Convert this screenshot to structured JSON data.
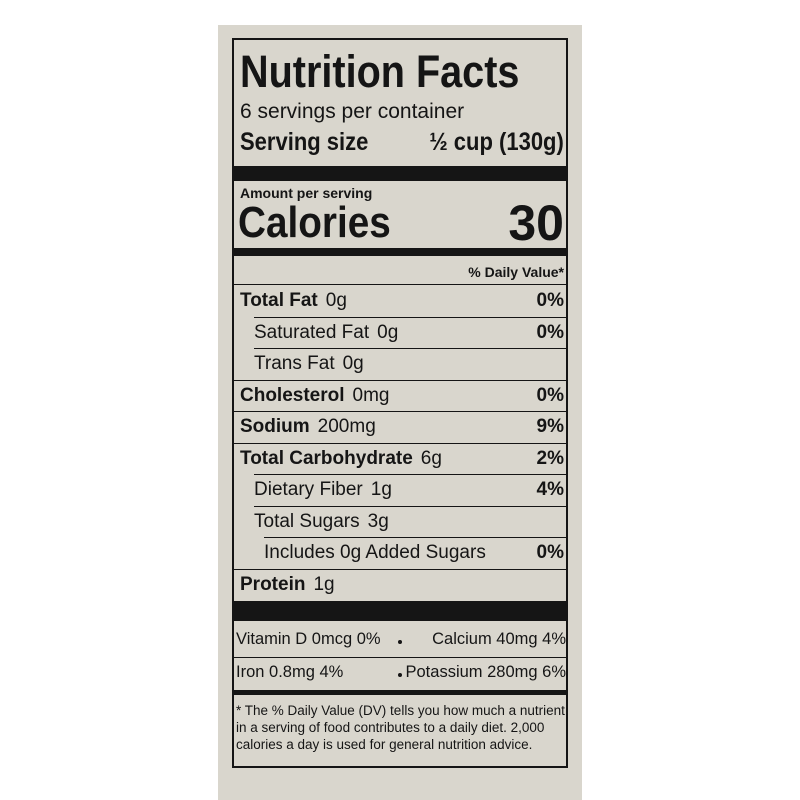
{
  "title": "Nutrition Facts",
  "servings": "6 servings per container",
  "serving_size": {
    "label": "Serving size",
    "value": "½ cup (130g)"
  },
  "amount_per_serving": "Amount per serving",
  "calories": {
    "label": "Calories",
    "value": "30"
  },
  "dv_header": "% Daily Value*",
  "nutrients": [
    {
      "name": "Total Fat",
      "amount": "0g",
      "dv": "0%",
      "level": 0
    },
    {
      "name": "Saturated Fat",
      "amount": "0g",
      "dv": "0%",
      "level": 1
    },
    {
      "name": "Trans Fat",
      "amount": "0g",
      "dv": null,
      "level": 1
    },
    {
      "name": "Cholesterol",
      "amount": "0mg",
      "dv": "0%",
      "level": 0
    },
    {
      "name": "Sodium",
      "amount": "200mg",
      "dv": "9%",
      "level": 0
    },
    {
      "name": "Total Carbohydrate",
      "amount": "6g",
      "dv": "2%",
      "level": 0
    },
    {
      "name": "Dietary Fiber",
      "amount": "1g",
      "dv": "4%",
      "level": 1
    },
    {
      "name": "Total Sugars",
      "amount": "3g",
      "dv": null,
      "level": 1
    },
    {
      "name": "Includes 0g Added Sugars",
      "amount": null,
      "dv": "0%",
      "level": 2
    },
    {
      "name": "Protein",
      "amount": "1g",
      "dv": null,
      "level": 0
    }
  ],
  "vitamins": [
    [
      "Vitamin D 0mcg 0%",
      "Calcium 40mg 4%"
    ],
    [
      "Iron 0.8mg 4%",
      "Potassium 280mg 6%"
    ]
  ],
  "footnote": [
    "* The % Daily Value (DV) tells you how much a nutrient",
    "in a serving of food contributes to a daily diet. 2,000",
    "calories a day is used for general nutrition advice."
  ]
}
